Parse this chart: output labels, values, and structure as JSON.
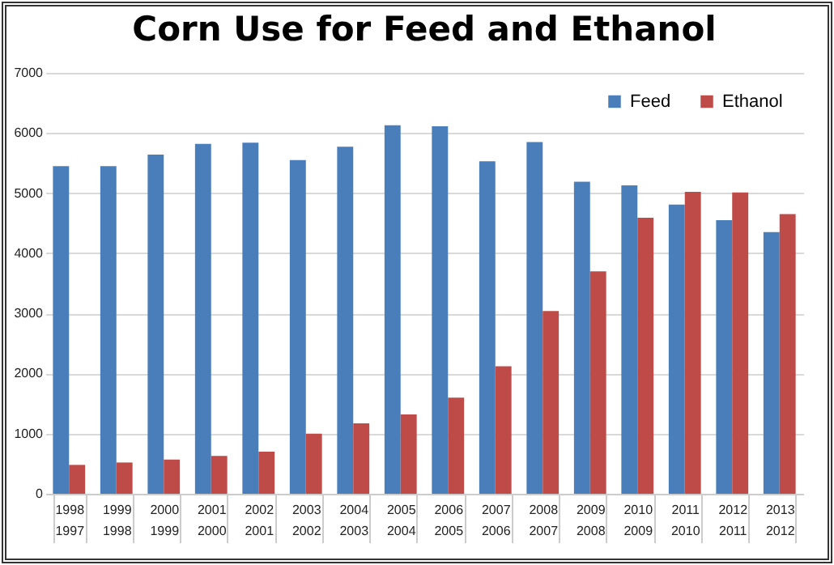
{
  "chart_data": {
    "type": "bar",
    "title": "Corn Use for Feed and Ethanol",
    "categories": [
      "1998\n1997",
      "1999\n1998",
      "2000\n1999",
      "2001\n2000",
      "2002\n2001",
      "2003\n2002",
      "2004\n2003",
      "2005\n2004",
      "2006\n2005",
      "2007\n2006",
      "2008\n2007",
      "2009\n2008",
      "2010\n2009",
      "2011\n2010",
      "2012\n2011",
      "2013\n2012"
    ],
    "series": [
      {
        "name": "Feed",
        "color": "#4a7ebb",
        "values": [
          5450,
          5450,
          5640,
          5820,
          5840,
          5550,
          5770,
          6130,
          6110,
          5530,
          5850,
          5190,
          5130,
          4810,
          4550,
          4350
        ]
      },
      {
        "name": "Ethanol",
        "color": "#be4b48",
        "values": [
          480,
          520,
          570,
          630,
          700,
          1000,
          1170,
          1320,
          1600,
          2120,
          3040,
          3700,
          4590,
          5020,
          5010,
          4650
        ]
      }
    ],
    "ylim": [
      0,
      7000
    ],
    "yticks": [
      0,
      1000,
      2000,
      3000,
      4000,
      5000,
      6000,
      7000
    ],
    "grid": "y",
    "legend": "top right"
  }
}
